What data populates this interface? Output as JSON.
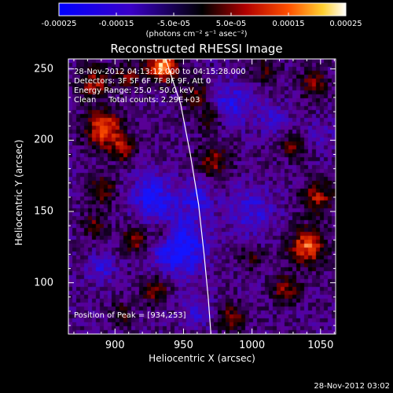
{
  "colorbar": {
    "tick_labels": [
      "-0.00025",
      "-0.00015",
      "-5.0e-05",
      "5.0e-05",
      "0.00015",
      "0.00025"
    ],
    "tick_values": [
      -0.00025,
      -0.00015,
      -5e-05,
      5e-05,
      0.00015,
      0.00025
    ],
    "range": [
      -0.00025,
      0.00025
    ],
    "label": "(photons cm⁻² s⁻¹ asec⁻²)"
  },
  "info": {
    "time_range": "28-Nov-2012 04:13:12.000 to 04:15:28.000",
    "detectors": "Detectors: 3F 5F 6F 7F 8F 9F, Att 0",
    "energy_range": "Energy Range: 25.0 - 50.0 keV",
    "clean_counts": "Clean     Total counts: 2.29E+03",
    "peak": "Position of Peak = [934,253]"
  },
  "timestamp": "28-Nov-2012 03:02",
  "colors": {
    "background": "#000000",
    "text": "#ffffff",
    "limb": "#ffffff",
    "colormap_negative": "#0000ff",
    "colormap_zero": "#000000",
    "colormap_positive": "#ffffff"
  },
  "chart_data": {
    "type": "heatmap",
    "title": "Reconstructed RHESSI Image",
    "xlabel": "Heliocentric X (arcsec)",
    "ylabel": "Heliocentric Y (arcsec)",
    "xlim": [
      866,
      1061
    ],
    "ylim": [
      64,
      257
    ],
    "x_ticks": [
      900,
      950,
      1000,
      1050
    ],
    "y_ticks": [
      100,
      150,
      200,
      250
    ],
    "x_tick_labels": [
      "900",
      "950",
      "1000",
      "1050"
    ],
    "y_tick_labels": [
      "100",
      "150",
      "200",
      "250"
    ],
    "peak_position": [
      934,
      253
    ],
    "value_range": [
      -0.00025,
      0.00025
    ],
    "limb_points": [
      [
        937,
        257
      ],
      [
        948,
        225
      ],
      [
        955,
        190
      ],
      [
        961,
        155
      ],
      [
        965,
        120
      ],
      [
        968,
        90
      ],
      [
        970,
        64
      ]
    ],
    "sources": [
      {
        "x": 935,
        "y": 252,
        "sigma": 8,
        "amp": 1.0
      },
      {
        "x": 892,
        "y": 208,
        "sigma": 9,
        "amp": 0.85
      },
      {
        "x": 906,
        "y": 194,
        "sigma": 6,
        "amp": 0.55
      },
      {
        "x": 885,
        "y": 240,
        "sigma": 8,
        "amp": 0.55
      },
      {
        "x": 910,
        "y": 245,
        "sigma": 6,
        "amp": 0.45
      },
      {
        "x": 960,
        "y": 232,
        "sigma": 7,
        "amp": 0.4
      },
      {
        "x": 970,
        "y": 215,
        "sigma": 6,
        "amp": 0.4
      },
      {
        "x": 972,
        "y": 185,
        "sigma": 8,
        "amp": 0.5
      },
      {
        "x": 890,
        "y": 165,
        "sigma": 7,
        "amp": 0.5
      },
      {
        "x": 885,
        "y": 140,
        "sigma": 6,
        "amp": 0.4
      },
      {
        "x": 915,
        "y": 130,
        "sigma": 7,
        "amp": 0.55
      },
      {
        "x": 935,
        "y": 135,
        "sigma": 6,
        "amp": 0.45
      },
      {
        "x": 930,
        "y": 95,
        "sigma": 7,
        "amp": 0.5
      },
      {
        "x": 905,
        "y": 78,
        "sigma": 6,
        "amp": 0.35
      },
      {
        "x": 1040,
        "y": 125,
        "sigma": 9,
        "amp": 0.8
      },
      {
        "x": 1048,
        "y": 160,
        "sigma": 8,
        "amp": 0.55
      },
      {
        "x": 1030,
        "y": 195,
        "sigma": 6,
        "amp": 0.4
      },
      {
        "x": 1045,
        "y": 240,
        "sigma": 7,
        "amp": 0.45
      },
      {
        "x": 1010,
        "y": 250,
        "sigma": 6,
        "amp": 0.35
      },
      {
        "x": 1025,
        "y": 95,
        "sigma": 7,
        "amp": 0.5
      },
      {
        "x": 985,
        "y": 75,
        "sigma": 7,
        "amp": 0.45
      },
      {
        "x": 1000,
        "y": 118,
        "sigma": 6,
        "amp": 0.3
      },
      {
        "x": 946,
        "y": 125,
        "sigma": 14,
        "amp": -0.65
      },
      {
        "x": 928,
        "y": 160,
        "sigma": 11,
        "amp": -0.5
      },
      {
        "x": 985,
        "y": 225,
        "sigma": 10,
        "amp": -0.45
      },
      {
        "x": 1000,
        "y": 150,
        "sigma": 12,
        "amp": -0.35
      },
      {
        "x": 890,
        "y": 110,
        "sigma": 7,
        "amp": -0.35
      },
      {
        "x": 1015,
        "y": 215,
        "sigma": 8,
        "amp": -0.3
      },
      {
        "x": 960,
        "y": 160,
        "sigma": 9,
        "amp": -0.35
      },
      {
        "x": 1050,
        "y": 205,
        "sigma": 6,
        "amp": -0.25
      },
      {
        "x": 960,
        "y": 80,
        "sigma": 8,
        "amp": -0.3
      }
    ]
  }
}
